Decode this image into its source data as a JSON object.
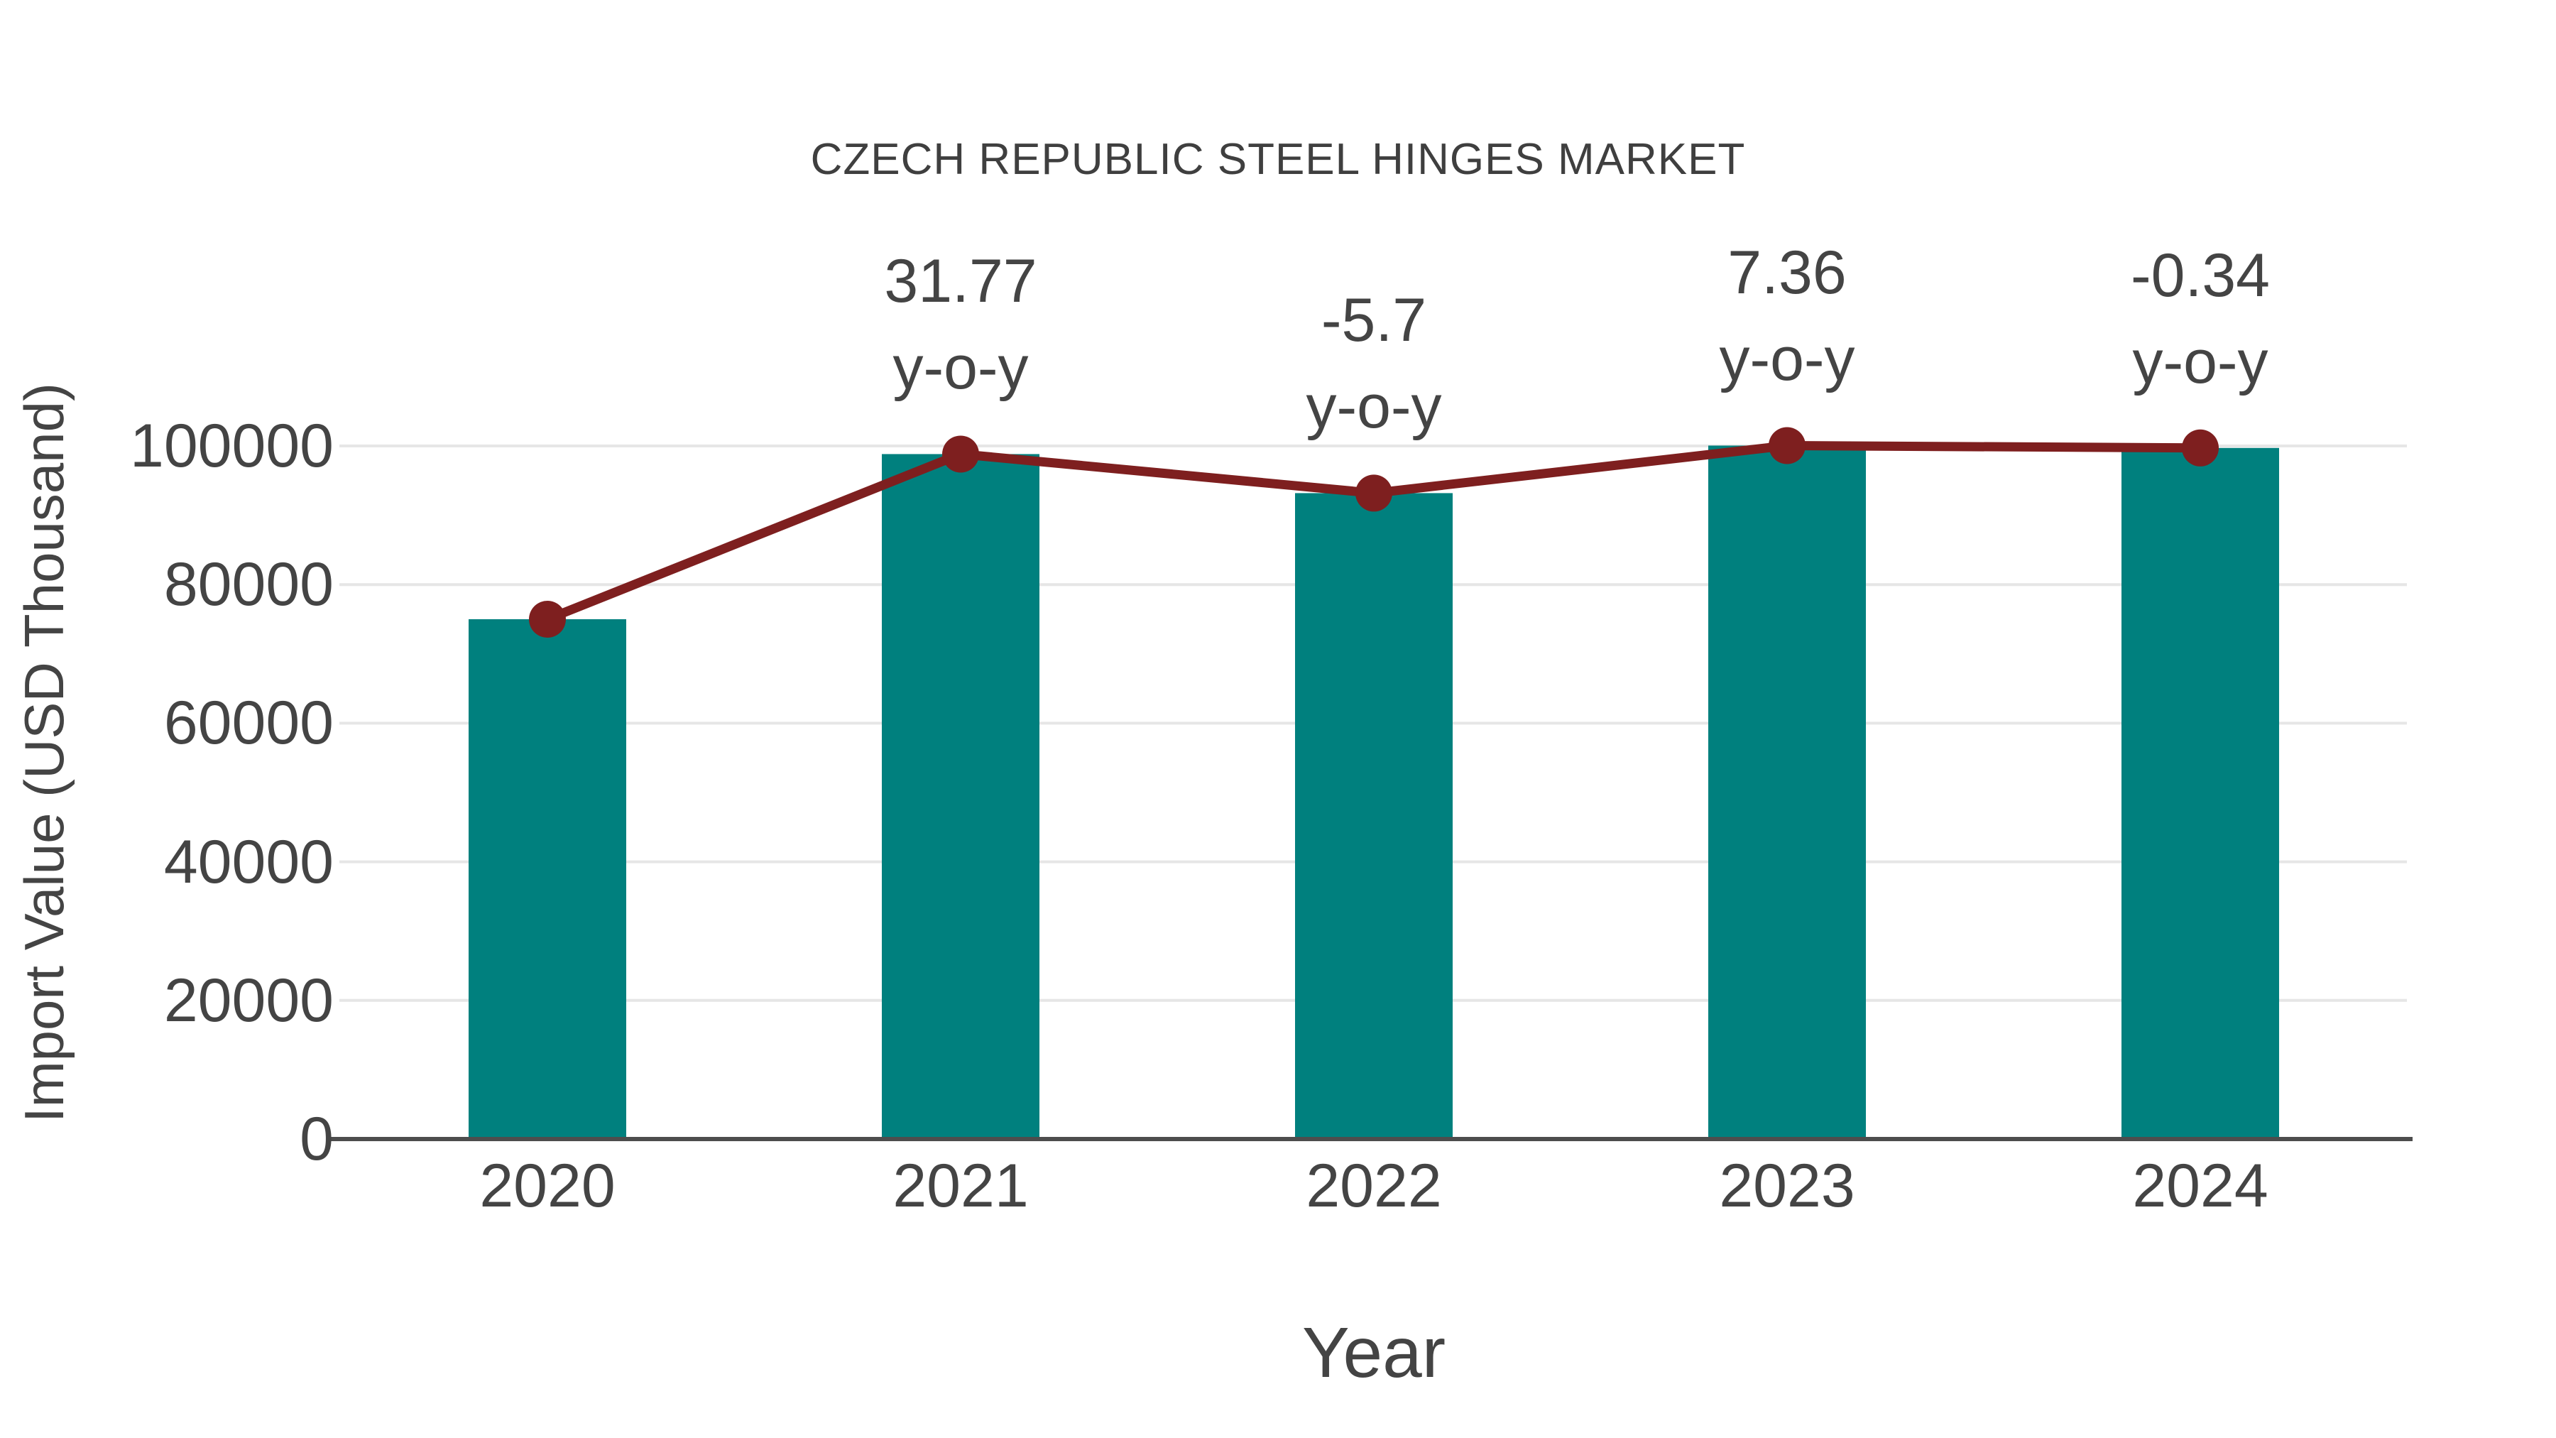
{
  "chart_data": {
    "type": "bar",
    "title": "CZECH REPUBLIC STEEL HINGES MARKET",
    "xlabel": "Year",
    "ylabel": "Import Value (USD Thousand)",
    "categories": [
      "2020",
      "2021",
      "2022",
      "2023",
      "2024"
    ],
    "series": [
      {
        "name": "import-value-bars",
        "type": "bar",
        "color": "#00807E",
        "values": [
          75000,
          98828,
          93194,
          100054,
          99713
        ]
      },
      {
        "name": "yoy-trend-line",
        "type": "line",
        "color": "#7E1F1F",
        "values": [
          75000,
          98828,
          93194,
          100054,
          99713
        ]
      }
    ],
    "annotations": [
      {
        "category": "2021",
        "value_label": "31.77",
        "unit_label": "y-o-y"
      },
      {
        "category": "2022",
        "value_label": "-5.7",
        "unit_label": "y-o-y"
      },
      {
        "category": "2023",
        "value_label": "7.36",
        "unit_label": "y-o-y"
      },
      {
        "category": "2024",
        "value_label": "-0.34",
        "unit_label": "y-o-y"
      }
    ],
    "yticks": [
      0,
      20000,
      40000,
      60000,
      80000,
      100000
    ],
    "ylim": [
      0,
      107000
    ],
    "grid": true,
    "legend_position": "none",
    "colors": {
      "bar": "#00807E",
      "line": "#7E1F1F",
      "marker": "#7E1F1F",
      "text": "#444444",
      "gridline": "#E6E6E6",
      "axis": "#4D4D4D",
      "background": "#FFFFFF"
    }
  }
}
